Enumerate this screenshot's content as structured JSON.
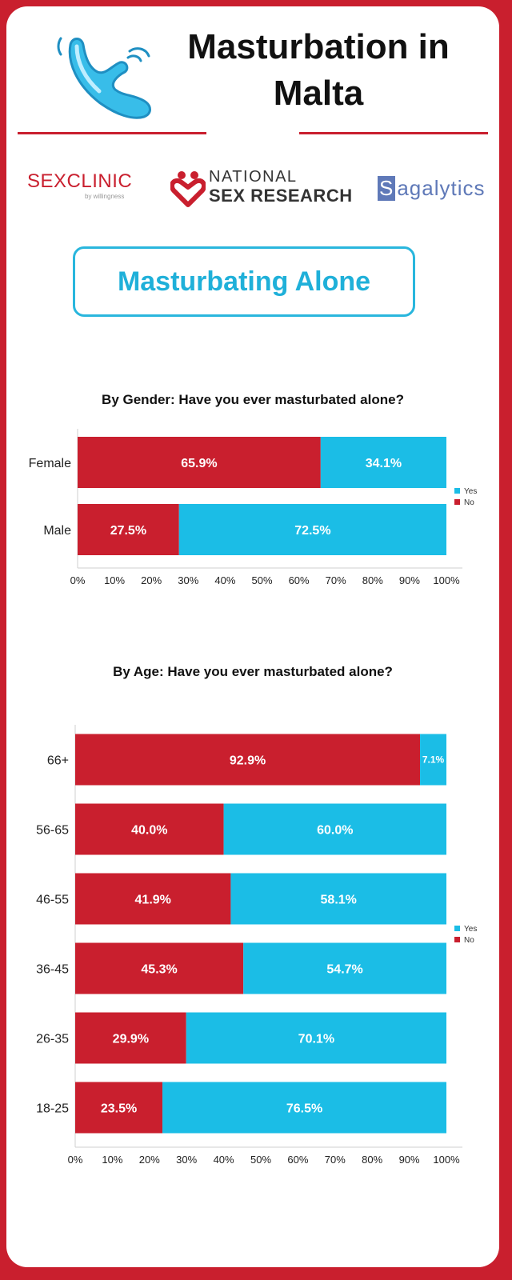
{
  "header": {
    "title": "Masturbation in Malta",
    "icon": "toy-icon"
  },
  "logos": {
    "sexclinic": {
      "name_bold": "SEX",
      "name_thin": "CLINIC",
      "tagline": "by willingness"
    },
    "nsr": {
      "line1": "NATIONAL",
      "line2": "SEX RESEARCH"
    },
    "sagalytics": {
      "initial": "S",
      "rest": "agalytics"
    }
  },
  "section": {
    "title": "Masturbating Alone"
  },
  "colors": {
    "no": "#c91f2e",
    "yes": "#1bbde6",
    "accent": "#c91f2e",
    "section": "#1fb0d9"
  },
  "chart_data": [
    {
      "type": "bar",
      "orientation": "horizontal",
      "stacked": true,
      "title": "By Gender: Have you ever masturbated alone?",
      "categories": [
        "Female",
        "Male"
      ],
      "series": [
        {
          "name": "No",
          "values": [
            65.9,
            27.5
          ]
        },
        {
          "name": "Yes",
          "values": [
            34.1,
            72.5
          ]
        }
      ],
      "xlim": [
        0,
        100
      ],
      "ticks": [
        "0%",
        "10%",
        "20%",
        "30%",
        "40%",
        "50%",
        "60%",
        "70%",
        "80%",
        "90%",
        "100%"
      ],
      "value_labels": [
        [
          "65.9%",
          "27.5%"
        ],
        [
          "34.1%",
          "72.5%"
        ]
      ],
      "legend": {
        "placement": "right",
        "entries": [
          "Yes",
          "No"
        ]
      }
    },
    {
      "type": "bar",
      "orientation": "horizontal",
      "stacked": true,
      "title": "By Age: Have you ever masturbated alone?",
      "categories": [
        "66+",
        "56-65",
        "46-55",
        "36-45",
        "26-35",
        "18-25"
      ],
      "series": [
        {
          "name": "No",
          "values": [
            92.9,
            40.0,
            41.9,
            45.3,
            29.9,
            23.5
          ]
        },
        {
          "name": "Yes",
          "values": [
            7.1,
            60.0,
            58.1,
            54.7,
            70.1,
            76.5
          ]
        }
      ],
      "xlim": [
        0,
        100
      ],
      "ticks": [
        "0%",
        "10%",
        "20%",
        "30%",
        "40%",
        "50%",
        "60%",
        "70%",
        "80%",
        "90%",
        "100%"
      ],
      "value_labels": [
        [
          "92.9%",
          "40.0%",
          "41.9%",
          "45.3%",
          "29.9%",
          "23.5%"
        ],
        [
          "7.1%",
          "60.0%",
          "58.1%",
          "54.7%",
          "70.1%",
          "76.5%"
        ]
      ],
      "legend": {
        "placement": "right",
        "entries": [
          "Yes",
          "No"
        ]
      }
    }
  ]
}
